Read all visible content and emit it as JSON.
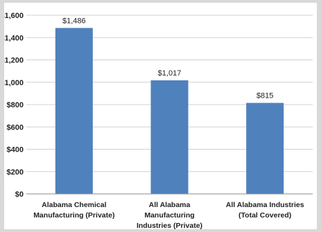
{
  "chart_data": {
    "type": "bar",
    "title": "",
    "xlabel": "",
    "ylabel": "",
    "categories": [
      [
        "Alabama Chemical",
        "Manufacturing (Private)"
      ],
      [
        "All Alabama",
        "Manufacturing",
        "Industries (Private)"
      ],
      [
        "All Alabama Industries",
        "(Total Covered)"
      ]
    ],
    "values": [
      1486,
      1017,
      815
    ],
    "value_labels": [
      "$1,486",
      "$1,017",
      "$815"
    ],
    "ylim": [
      0,
      1600
    ],
    "yticks": [
      0,
      200,
      400,
      600,
      800,
      1000,
      1200,
      1400,
      1600
    ],
    "ytick_labels": [
      "$0",
      "$200",
      "$400",
      "$600",
      "$800",
      "$1,000",
      "$1,200",
      "$1,400",
      "$1,600"
    ],
    "grid": true,
    "legend": "none",
    "colors": {
      "bar": "#4f81bd",
      "grid": "#d0d0d0",
      "axis": "#8c8c8c",
      "frame_bg": "#d9d9d9"
    }
  }
}
